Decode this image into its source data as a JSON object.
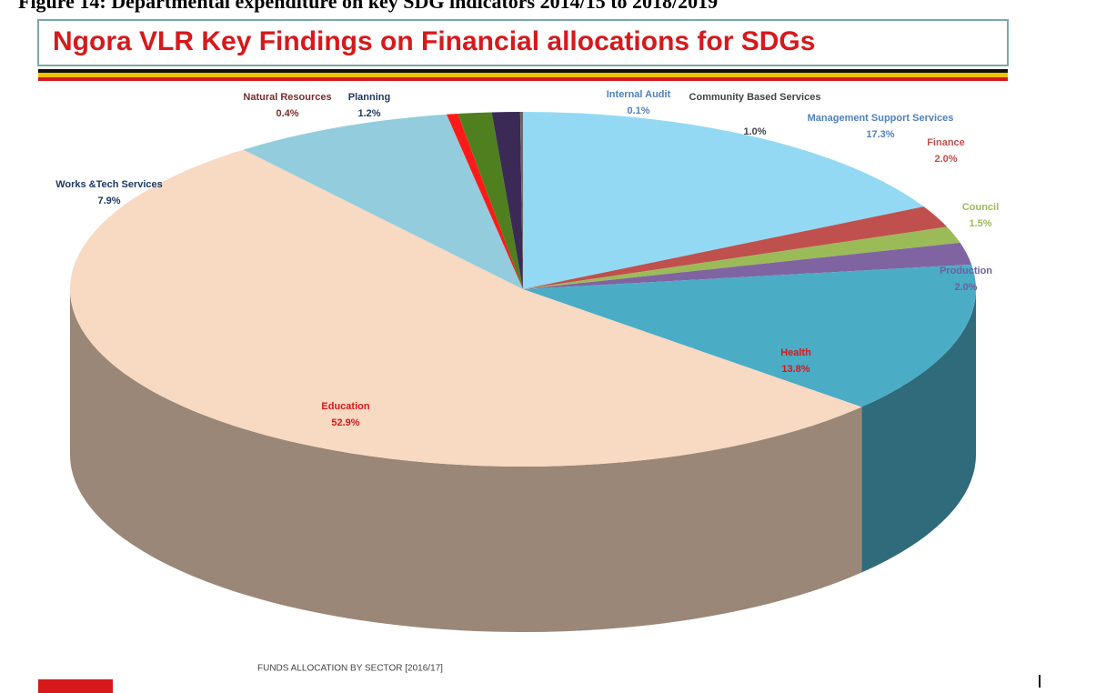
{
  "caption": "Figure 14: Departmental expenditure on key SDG indicators 2014/15 to 2018/2019",
  "chart_data": {
    "type": "pie3d",
    "title": "Ngora VLR Key Findings on Financial allocations for SDGs",
    "footer": "FUNDS ALLOCATION  BY SECTOR [2016/17]",
    "categories": [
      "Management Support Services",
      "Finance",
      "Council",
      "Production",
      "Health",
      "Education",
      "Works &Tech Services",
      "Natural Resources",
      "Planning",
      "Community Based Services",
      "Internal Audit"
    ],
    "values": [
      17.3,
      2.0,
      1.5,
      2.0,
      13.8,
      52.9,
      7.9,
      0.4,
      1.2,
      1.0,
      0.1
    ],
    "value_labels": [
      "17.3%",
      "2.0%",
      "1.5%",
      "2.0%",
      "13.8%",
      "52.9%",
      "7.9%",
      "0.4%",
      "1.2%",
      "1.0%",
      "0.1%"
    ],
    "colors": [
      "#93d9f4",
      "#c0504d",
      "#9bbb59",
      "#8064a2",
      "#4bacc6",
      "#f8d9c2",
      "#93cddd",
      "#ff1a1a",
      "#4f7f1f",
      "#3b2a55",
      "#6b6b6b"
    ]
  }
}
